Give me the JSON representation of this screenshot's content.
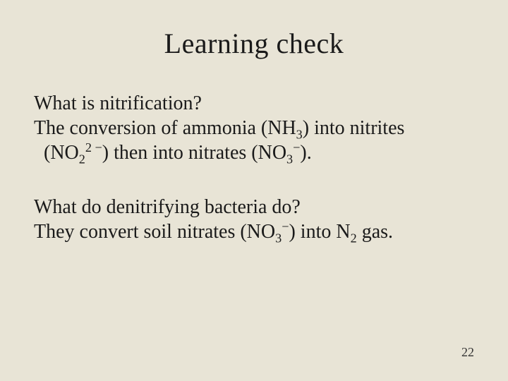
{
  "slide": {
    "title": "Learning check",
    "question1": "What is nitrification?",
    "answer1_part1a": "The conversion of ammonia (NH",
    "answer1_part1_sub1": "3",
    "answer1_part1b": ") into nitrites",
    "answer1_part2a": "(NO",
    "answer1_part2_sub1": "2",
    "answer1_part2_sup1": "2 −",
    "answer1_part2b": ") then into nitrates (NO",
    "answer1_part2_sub2": "3",
    "answer1_part2_sup2": "−",
    "answer1_part2c": ").",
    "question2": "What do denitrifying bacteria do?",
    "answer2_a": "They convert soil nitrates (NO",
    "answer2_sub1": "3",
    "answer2_sup1": "−",
    "answer2_b": ") into N",
    "answer2_sub2": "2",
    "answer2_c": " gas.",
    "page_number": "22"
  },
  "style": {
    "background_color": "#e8e4d6",
    "text_color": "#1a1a1a",
    "title_fontsize": 40,
    "body_fontsize": 28,
    "pagenum_fontsize": 18,
    "font_family": "Times New Roman"
  }
}
